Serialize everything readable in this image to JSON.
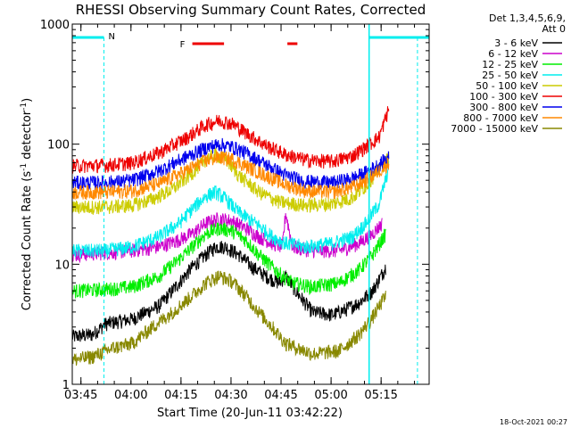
{
  "chart_data": {
    "type": "line",
    "title": "RHESSI Observing Summary Count Rates, Corrected",
    "xlabel": "Start Time (20-Jun-11 03:42:22)",
    "ylabel_pre": "Corrected Count Rate (s",
    "ylabel_sup1": "-1",
    "ylabel_mid": " detector",
    "ylabel_sup2": "-1",
    "ylabel_post": ")",
    "yscale": "log",
    "ylim": [
      1,
      1000
    ],
    "xlim_minutes_after_0342_22": [
      0,
      107
    ],
    "y_ticks": [
      {
        "label": "1",
        "value": 1
      },
      {
        "label": "10",
        "value": 10
      },
      {
        "label": "100",
        "value": 100
      },
      {
        "label": "1000",
        "value": 1000
      }
    ],
    "x_ticks": [
      {
        "label": "03:45",
        "minutes": 2.6
      },
      {
        "label": "04:00",
        "minutes": 17.6
      },
      {
        "label": "04:15",
        "minutes": 32.6
      },
      {
        "label": "04:30",
        "minutes": 47.6
      },
      {
        "label": "04:45",
        "minutes": 62.6
      },
      {
        "label": "05:00",
        "minutes": 77.6
      },
      {
        "label": "05:15",
        "minutes": 92.6
      }
    ],
    "legend_header": [
      "Det 1,3,4,5,6,9,",
      "Att 0"
    ],
    "legend_placement": "right",
    "series": [
      {
        "name": "3 - 6 keV",
        "color": "#000000",
        "points": [
          [
            0,
            2.5
          ],
          [
            6,
            2.6
          ],
          [
            10,
            3.2
          ],
          [
            18,
            3.5
          ],
          [
            26,
            4.5
          ],
          [
            32,
            7
          ],
          [
            36,
            9.5
          ],
          [
            40,
            12
          ],
          [
            43,
            14
          ],
          [
            46,
            14
          ],
          [
            50,
            12
          ],
          [
            54,
            9.5
          ],
          [
            58,
            8
          ],
          [
            62,
            7
          ],
          [
            64,
            8
          ],
          [
            67,
            6
          ],
          [
            72,
            4
          ],
          [
            78,
            3.8
          ],
          [
            82,
            4.2
          ],
          [
            86,
            4.8
          ],
          [
            90,
            6
          ],
          [
            92,
            7.5
          ],
          [
            94,
            9.5
          ]
        ]
      },
      {
        "name": "6 - 12 keV",
        "color": "#cc00cc",
        "points": [
          [
            0,
            12
          ],
          [
            10,
            12.5
          ],
          [
            18,
            13
          ],
          [
            26,
            14
          ],
          [
            32,
            16
          ],
          [
            36,
            18
          ],
          [
            40,
            22
          ],
          [
            44,
            24
          ],
          [
            48,
            23
          ],
          [
            52,
            20
          ],
          [
            56,
            17
          ],
          [
            60,
            15
          ],
          [
            63,
            14
          ],
          [
            64,
            27
          ],
          [
            66,
            14
          ],
          [
            72,
            13
          ],
          [
            80,
            13
          ],
          [
            86,
            15
          ],
          [
            90,
            18
          ],
          [
            93,
            22
          ]
        ]
      },
      {
        "name": "12 - 25 keV",
        "color": "#00ee00",
        "points": [
          [
            0,
            6
          ],
          [
            10,
            6.2
          ],
          [
            18,
            6.5
          ],
          [
            26,
            8
          ],
          [
            32,
            11
          ],
          [
            36,
            14
          ],
          [
            40,
            18
          ],
          [
            44,
            20
          ],
          [
            48,
            19
          ],
          [
            52,
            16
          ],
          [
            56,
            12
          ],
          [
            60,
            9.5
          ],
          [
            63,
            8
          ],
          [
            66,
            7
          ],
          [
            72,
            6.5
          ],
          [
            80,
            7
          ],
          [
            86,
            9
          ],
          [
            90,
            12
          ],
          [
            94,
            18
          ]
        ]
      },
      {
        "name": "25 - 50 keV",
        "color": "#00eeee",
        "points": [
          [
            0,
            13
          ],
          [
            10,
            13
          ],
          [
            18,
            14
          ],
          [
            26,
            17
          ],
          [
            32,
            22
          ],
          [
            36,
            29
          ],
          [
            40,
            37
          ],
          [
            43,
            40
          ],
          [
            46,
            35
          ],
          [
            50,
            27
          ],
          [
            56,
            21
          ],
          [
            60,
            17
          ],
          [
            64,
            15
          ],
          [
            70,
            14
          ],
          [
            78,
            15
          ],
          [
            84,
            17
          ],
          [
            88,
            22
          ],
          [
            92,
            32
          ],
          [
            95,
            65
          ]
        ]
      },
      {
        "name": "50 - 100 keV",
        "color": "#cccc00",
        "points": [
          [
            0,
            30
          ],
          [
            10,
            30
          ],
          [
            18,
            31
          ],
          [
            24,
            35
          ],
          [
            30,
            42
          ],
          [
            36,
            58
          ],
          [
            40,
            75
          ],
          [
            43,
            82
          ],
          [
            46,
            75
          ],
          [
            50,
            55
          ],
          [
            56,
            40
          ],
          [
            62,
            33
          ],
          [
            70,
            31
          ],
          [
            78,
            32
          ],
          [
            84,
            36
          ],
          [
            88,
            45
          ],
          [
            92,
            62
          ],
          [
            95,
            78
          ]
        ]
      },
      {
        "name": "100 - 300 keV",
        "color": "#ee0000",
        "points": [
          [
            0,
            66
          ],
          [
            10,
            67
          ],
          [
            18,
            70
          ],
          [
            26,
            85
          ],
          [
            34,
            112
          ],
          [
            40,
            145
          ],
          [
            44,
            158
          ],
          [
            48,
            148
          ],
          [
            52,
            125
          ],
          [
            58,
            98
          ],
          [
            64,
            82
          ],
          [
            70,
            74
          ],
          [
            78,
            72
          ],
          [
            84,
            80
          ],
          [
            88,
            95
          ],
          [
            92,
            115
          ],
          [
            95,
            200
          ]
        ]
      },
      {
        "name": "300 - 800 keV",
        "color": "#0000ee",
        "points": [
          [
            0,
            48
          ],
          [
            10,
            48
          ],
          [
            18,
            50
          ],
          [
            26,
            60
          ],
          [
            34,
            78
          ],
          [
            40,
            93
          ],
          [
            44,
            100
          ],
          [
            48,
            95
          ],
          [
            52,
            85
          ],
          [
            58,
            68
          ],
          [
            64,
            55
          ],
          [
            70,
            49
          ],
          [
            78,
            48
          ],
          [
            84,
            52
          ],
          [
            88,
            58
          ],
          [
            92,
            68
          ],
          [
            95,
            78
          ]
        ]
      },
      {
        "name": "800 - 7000 keV",
        "color": "#ff8800",
        "points": [
          [
            0,
            40
          ],
          [
            10,
            40
          ],
          [
            18,
            41
          ],
          [
            26,
            47
          ],
          [
            34,
            60
          ],
          [
            40,
            73
          ],
          [
            44,
            78
          ],
          [
            48,
            75
          ],
          [
            52,
            66
          ],
          [
            58,
            55
          ],
          [
            64,
            46
          ],
          [
            70,
            41
          ],
          [
            78,
            40
          ],
          [
            84,
            44
          ],
          [
            88,
            50
          ],
          [
            92,
            60
          ],
          [
            95,
            70
          ]
        ]
      },
      {
        "name": "7000 - 15000 keV",
        "color": "#888800",
        "points": [
          [
            0,
            1.6
          ],
          [
            6,
            1.7
          ],
          [
            12,
            2.0
          ],
          [
            18,
            2.2
          ],
          [
            24,
            3
          ],
          [
            30,
            4
          ],
          [
            36,
            5.5
          ],
          [
            40,
            7
          ],
          [
            44,
            8
          ],
          [
            48,
            7.2
          ],
          [
            52,
            5.5
          ],
          [
            56,
            4
          ],
          [
            60,
            3
          ],
          [
            64,
            2.2
          ],
          [
            72,
            1.8
          ],
          [
            80,
            1.9
          ],
          [
            86,
            2.6
          ],
          [
            90,
            3.6
          ],
          [
            94,
            5.5
          ]
        ]
      }
    ],
    "annotations": {
      "flag_F_label": "F",
      "flag_N_label": "N",
      "night_color": "#00eeee",
      "flare_color": "#ee0000",
      "night_intervals": [
        [
          0,
          9.5
        ],
        [
          89,
          107
        ]
      ],
      "flare_intervals": [
        [
          36,
          45.5
        ],
        [
          64.5,
          67.5
        ]
      ]
    },
    "grid": false
  },
  "footer": {
    "timestamp": "18-Oct-2021 00:27"
  }
}
